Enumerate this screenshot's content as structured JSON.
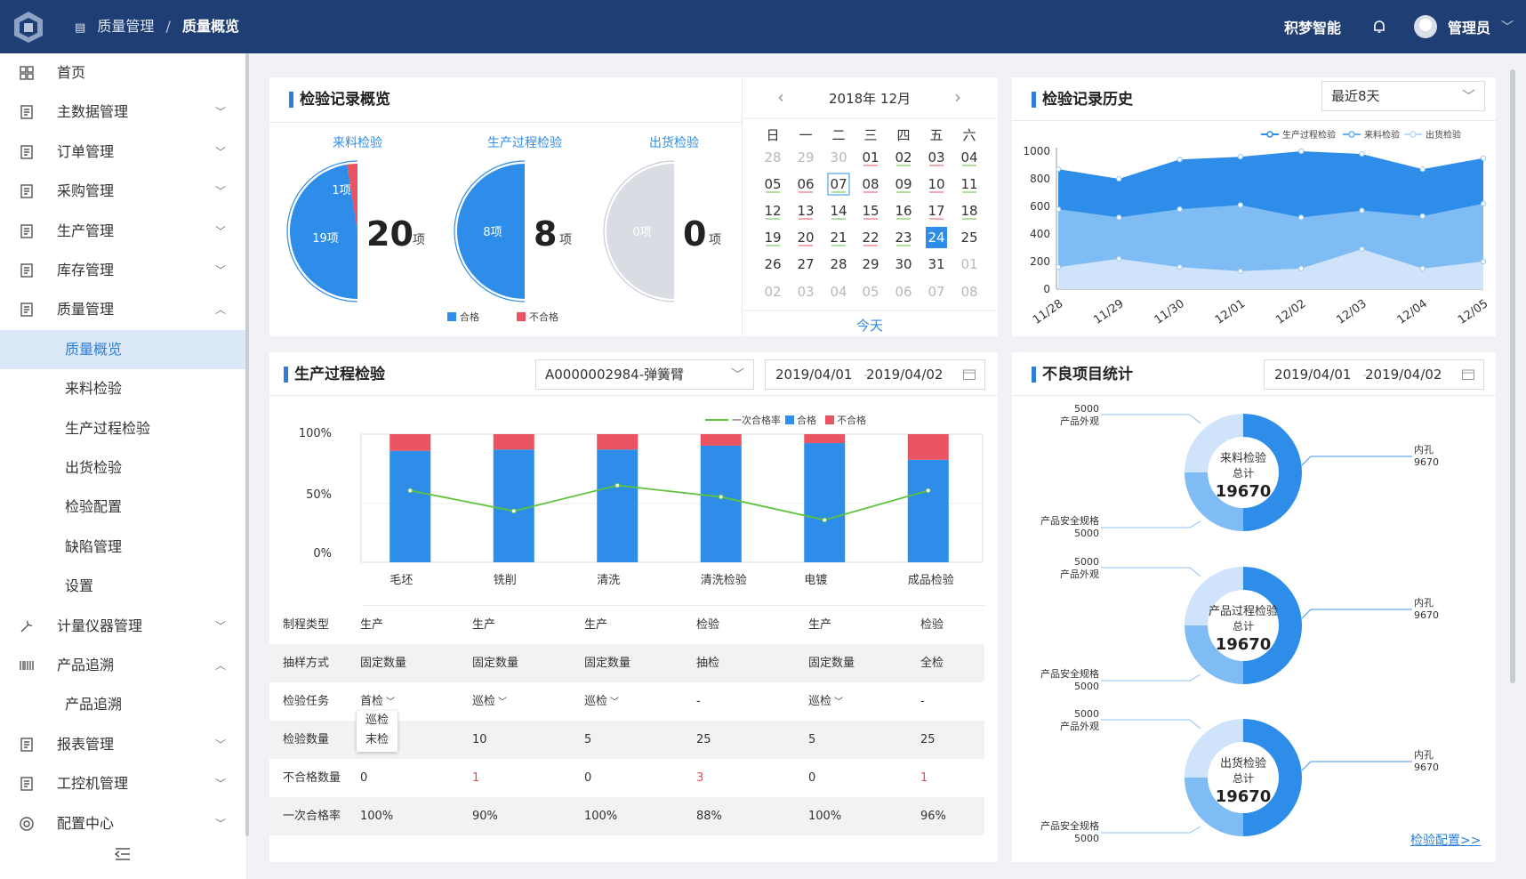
{
  "header": {
    "breadcrumb": [
      "质量管理",
      "质量概览"
    ],
    "brand": "积梦智能",
    "user": "管理员"
  },
  "sidebar": {
    "items": [
      {
        "label": "首页",
        "icon": "grid-icon",
        "chevron": ""
      },
      {
        "label": "主数据管理",
        "icon": "master-data-icon",
        "chevron": "﹀"
      },
      {
        "label": "订单管理",
        "icon": "order-icon",
        "chevron": "﹀"
      },
      {
        "label": "采购管理",
        "icon": "purchase-icon",
        "chevron": "﹀"
      },
      {
        "label": "生产管理",
        "icon": "production-icon",
        "chevron": "﹀"
      },
      {
        "label": "库存管理",
        "icon": "warehouse-icon",
        "chevron": "﹀"
      },
      {
        "label": "质量管理",
        "icon": "quality-icon",
        "chevron": "︿"
      },
      {
        "label": "质量概览",
        "sub": true,
        "active": true
      },
      {
        "label": "来料检验",
        "sub": true
      },
      {
        "label": "生产过程检验",
        "sub": true
      },
      {
        "label": "出货检验",
        "sub": true
      },
      {
        "label": "检验配置",
        "sub": true
      },
      {
        "label": "缺陷管理",
        "sub": true
      },
      {
        "label": "设置",
        "sub": true
      },
      {
        "label": "计量仪器管理",
        "icon": "wrench-icon",
        "chevron": "﹀"
      },
      {
        "label": "产品追溯",
        "icon": "barcode-icon",
        "chevron": "︿"
      },
      {
        "label": "产品追溯",
        "sub": true
      },
      {
        "label": "报表管理",
        "icon": "report-icon",
        "chevron": "﹀"
      },
      {
        "label": "工控机管理",
        "icon": "monitor-icon",
        "chevron": "﹀"
      },
      {
        "label": "配置中心",
        "icon": "gear-icon",
        "chevron": "﹀"
      }
    ]
  },
  "overview": {
    "title": "检验记录概览",
    "pies": [
      {
        "label": "来料检验",
        "total": "20",
        "unit": "项",
        "pass_label": "19项",
        "fail_label": "1项",
        "pass": 19,
        "fail": 1
      },
      {
        "label": "生产过程检验",
        "total": "8",
        "unit": "项",
        "pass_label": "8项",
        "fail_label": "",
        "pass": 8,
        "fail": 0
      },
      {
        "label": "出货检验",
        "total": "0",
        "unit": "项",
        "pass_label": "0项",
        "fail_label": "",
        "pass": 0,
        "fail": 0
      }
    ],
    "legend": {
      "pass": "合格",
      "fail": "不合格"
    }
  },
  "calendar": {
    "month": "2018年 12月",
    "prev": "‹",
    "next": "›",
    "today": "今天",
    "weekdays": [
      "日",
      "一",
      "二",
      "三",
      "四",
      "五",
      "六"
    ],
    "rows": [
      [
        "28",
        "29",
        "30",
        "01",
        "02",
        "03",
        "04"
      ],
      [
        "05",
        "06",
        "07",
        "08",
        "09",
        "10",
        "11"
      ],
      [
        "12",
        "13",
        "14",
        "15",
        "16",
        "17",
        "18"
      ],
      [
        "19",
        "20",
        "21",
        "22",
        "23",
        "24",
        "25"
      ],
      [
        "26",
        "27",
        "28",
        "29",
        "30",
        "31",
        "01"
      ],
      [
        "02",
        "03",
        "04",
        "05",
        "06",
        "07",
        "08"
      ]
    ]
  },
  "history": {
    "title": "检验记录历史",
    "range": "最近8天",
    "chart_data": {
      "type": "area",
      "categories": [
        "11/28",
        "11/29",
        "11/30",
        "12/01",
        "12/02",
        "12/03",
        "12/04",
        "12/05"
      ],
      "series": [
        {
          "name": "生产过程检验",
          "values": [
            870,
            800,
            940,
            960,
            1000,
            980,
            870,
            950
          ]
        },
        {
          "name": "来料检验",
          "values": [
            580,
            520,
            580,
            610,
            520,
            570,
            530,
            620
          ]
        },
        {
          "name": "出货检验",
          "values": [
            160,
            220,
            160,
            130,
            150,
            290,
            150,
            200
          ]
        }
      ],
      "ylim": [
        0,
        1000
      ],
      "yticks": [
        0,
        200,
        400,
        600,
        800,
        1000
      ]
    }
  },
  "process": {
    "title": "生产过程检验",
    "product": "A0000002984-弹簧臂",
    "date_from": "2019/04/01",
    "date_to": "2019/04/02",
    "chart_data": {
      "type": "bar",
      "categories": [
        "毛坯",
        "铣削",
        "清洗",
        "清洗检验",
        "电镀",
        "成品检验"
      ],
      "series": [
        {
          "name": "合格",
          "values": [
            87,
            88,
            88,
            91,
            93,
            80
          ]
        },
        {
          "name": "不合格",
          "values": [
            13,
            12,
            12,
            9,
            7,
            20
          ]
        },
        {
          "name": "一次合格率",
          "values": [
            56,
            40,
            60,
            51,
            33,
            56
          ]
        }
      ],
      "yticks": [
        "0%",
        "50%",
        "100%"
      ],
      "ylim": [
        0,
        100
      ]
    },
    "table": {
      "rows": [
        {
          "label": "制程类型",
          "cells": [
            "生产",
            "生产",
            "生产",
            "检验",
            "生产",
            "检验"
          ]
        },
        {
          "label": "抽样方式",
          "cells": [
            "固定数量",
            "固定数量",
            "固定数量",
            "抽检",
            "固定数量",
            "全检"
          ]
        },
        {
          "label": "检验任务",
          "cells": [
            "首检",
            "巡检",
            "巡检",
            "-",
            "巡检",
            "-"
          ]
        },
        {
          "label": "检验数量",
          "cells": [
            "",
            "10",
            "5",
            "25",
            "5",
            "25"
          ]
        },
        {
          "label": "不合格数量",
          "cells": [
            "0",
            "1",
            "0",
            "3",
            "0",
            "1"
          ]
        },
        {
          "label": "一次合格率",
          "cells": [
            "100%",
            "90%",
            "100%",
            "88%",
            "100%",
            "96%"
          ]
        }
      ],
      "dropdown": [
        "巡检",
        "末检"
      ]
    }
  },
  "defects": {
    "title": "不良项目统计",
    "date_from": "2019/04/01",
    "date_to": "2019/04/02",
    "link": "检验配置>>",
    "donuts": [
      {
        "name": "来料检验",
        "sub": "总计",
        "total": "19670",
        "left_top_value": "5000",
        "left_top_label": "产品外观",
        "left_bottom_label": "产品安全规格",
        "left_bottom_value": "5000",
        "right_label": "内孔",
        "right_value": "9670"
      },
      {
        "name": "产品过程检验",
        "sub": "总计",
        "total": "19670",
        "left_top_value": "5000",
        "left_top_label": "产品外观",
        "left_bottom_label": "产品安全规格",
        "left_bottom_value": "5000",
        "right_label": "内孔",
        "right_value": "9670"
      },
      {
        "name": "出货检验",
        "sub": "总计",
        "total": "19670",
        "left_top_value": "5000",
        "left_top_label": "产品外观",
        "left_bottom_label": "产品安全规格",
        "left_bottom_value": "5000",
        "right_label": "内孔",
        "right_value": "9670"
      }
    ]
  },
  "colors": {
    "blue": "#2e8de8",
    "red": "#ea5360",
    "light": "#80bcf4",
    "pale": "#cfe4fa",
    "green": "#5ec33b",
    "gray": "#d9dce2"
  }
}
